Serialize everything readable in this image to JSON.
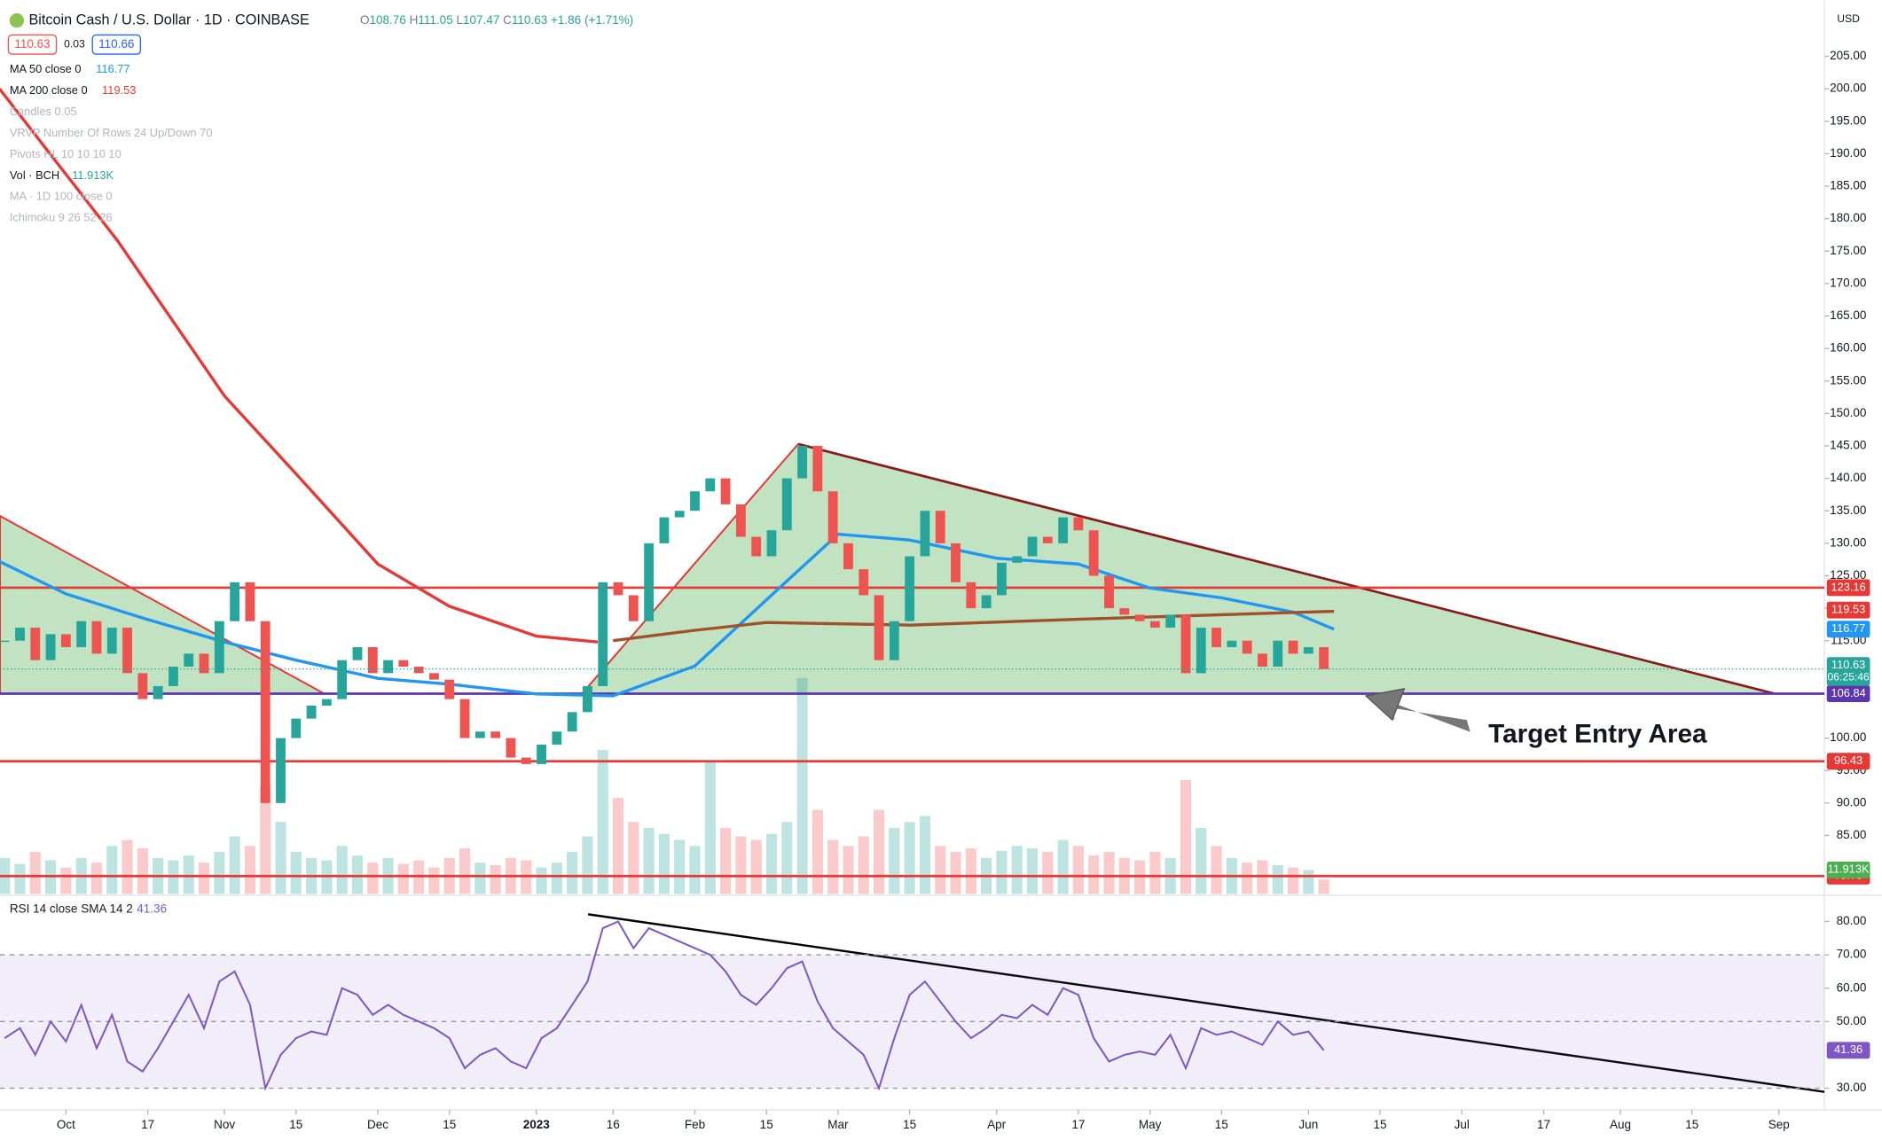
{
  "header": {
    "symbol": "Bitcoin Cash / U.S. Dollar · 1D · COINBASE",
    "ohlc": [
      [
        "O",
        "108.76"
      ],
      [
        "H",
        "111.05"
      ],
      [
        "L",
        "107.47"
      ],
      [
        "C",
        "110.63"
      ]
    ],
    "change": "+1.86 (+1.71%)",
    "bid": "110.63",
    "spread": "0.03",
    "ask": "110.66",
    "currency": "USD",
    "countdown": "06:25:46"
  },
  "indicators": [
    {
      "name": "MA 50 close 0",
      "value": 116.77,
      "color": "#2196f3"
    },
    {
      "name": "MA 200 close 0",
      "value": 119.53,
      "color": "#e53935"
    },
    {
      "name": "Candles 0.05"
    },
    {
      "name": "VRVP Number Of Rows 24 Up/Down 70"
    },
    {
      "name": "Pivots HL 10 10 10 10"
    },
    {
      "name": "Vol · BCH",
      "value": "11.913K",
      "color": "#26a69a"
    },
    {
      "name": "MA · 1D 100 close 0"
    },
    {
      "name": "Ichimoku 9 26 52 26"
    }
  ],
  "annotation": "Target Entry Area",
  "rsi_title": "RSI 14 close SMA 14 2",
  "rsi_value": 41.36,
  "chart_data": {
    "type": "candlestick",
    "xlim": [
      -12.9,
      343.9
    ],
    "ylim": [
      76.0,
      213.1
    ],
    "xticks": [
      {
        "value": 0,
        "label": "Oct"
      },
      {
        "value": 16,
        "label": "17"
      },
      {
        "value": 31,
        "label": "Nov"
      },
      {
        "value": 45,
        "label": "15"
      },
      {
        "value": 61,
        "label": "Dec"
      },
      {
        "value": 75,
        "label": "15"
      },
      {
        "value": 92,
        "label": "2023"
      },
      {
        "value": 107,
        "label": "16"
      },
      {
        "value": 123,
        "label": "Feb"
      },
      {
        "value": 137,
        "label": "15"
      },
      {
        "value": 151,
        "label": "Mar"
      },
      {
        "value": 165,
        "label": "15"
      },
      {
        "value": 182,
        "label": "Apr"
      },
      {
        "value": 198,
        "label": "17"
      },
      {
        "value": 212,
        "label": "May"
      },
      {
        "value": 226,
        "label": "15"
      },
      {
        "value": 243,
        "label": "Jun"
      },
      {
        "value": 257,
        "label": "15"
      },
      {
        "value": 273,
        "label": "Jul"
      },
      {
        "value": 289,
        "label": "17"
      },
      {
        "value": 304,
        "label": "Aug"
      },
      {
        "value": 318,
        "label": "15"
      },
      {
        "value": 335,
        "label": "Sep"
      }
    ],
    "yticks": [
      {
        "value": 205,
        "label": "205.00"
      },
      {
        "value": 200,
        "label": "200.00"
      },
      {
        "value": 195,
        "label": "195.00"
      },
      {
        "value": 190,
        "label": "190.00"
      },
      {
        "value": 185,
        "label": "185.00"
      },
      {
        "value": 180,
        "label": "180.00"
      },
      {
        "value": 175,
        "label": "175.00"
      },
      {
        "value": 170,
        "label": "170.00"
      },
      {
        "value": 165,
        "label": "165.00"
      },
      {
        "value": 160,
        "label": "160.00"
      },
      {
        "value": 155,
        "label": "155.00"
      },
      {
        "value": 150,
        "label": "150.00"
      },
      {
        "value": 145,
        "label": "145.00"
      },
      {
        "value": 140,
        "label": "140.00"
      },
      {
        "value": 135,
        "label": "135.00"
      },
      {
        "value": 130,
        "label": "130.00"
      },
      {
        "value": 125,
        "label": "125.00"
      },
      {
        "value": 120,
        "label": "120.00"
      },
      {
        "value": 115,
        "label": "115.00"
      },
      {
        "value": 100,
        "label": "100.00"
      },
      {
        "value": 95,
        "label": "95.00"
      },
      {
        "value": 90,
        "label": "90.00"
      },
      {
        "value": 85,
        "label": "85.00"
      }
    ],
    "x": [
      -12,
      -9,
      -6,
      -3,
      0,
      3,
      6,
      9,
      12,
      15,
      18,
      21,
      24,
      27,
      30,
      33,
      36,
      39,
      42,
      45,
      48,
      51,
      54,
      57,
      60,
      63,
      66,
      69,
      72,
      75,
      78,
      81,
      84,
      87,
      90,
      93,
      96,
      99,
      102,
      105,
      108,
      111,
      114,
      117,
      120,
      123,
      126,
      129,
      132,
      135,
      138,
      141,
      144,
      147,
      150,
      153,
      156,
      159,
      162,
      165,
      168,
      171,
      174,
      177,
      180,
      183,
      186,
      189,
      192,
      195,
      198,
      201,
      204,
      207,
      210,
      213,
      216,
      219,
      222,
      225,
      228,
      231,
      234,
      237,
      240,
      243,
      246
    ],
    "close": [
      115,
      117,
      112,
      116,
      114,
      118,
      113,
      117,
      110,
      106,
      108,
      111,
      113,
      110,
      118,
      124,
      118,
      90,
      100,
      103,
      105,
      106,
      112,
      114,
      110,
      112,
      111,
      110,
      109,
      106,
      100,
      101,
      100,
      97,
      96,
      99,
      101,
      104,
      108,
      124,
      122,
      118,
      130,
      134,
      135,
      138,
      140,
      136,
      131,
      128,
      132,
      140,
      145,
      138,
      130,
      126,
      122,
      112,
      118,
      128,
      135,
      130,
      124,
      120,
      122,
      127,
      128,
      131,
      130,
      134,
      132,
      125,
      120,
      119,
      118,
      117,
      119,
      110,
      117,
      114,
      115,
      113,
      111,
      115,
      113,
      114,
      110.63
    ],
    "volume": [
      30,
      25,
      35,
      28,
      22,
      30,
      26,
      40,
      45,
      38,
      30,
      28,
      32,
      26,
      35,
      48,
      40,
      90,
      60,
      35,
      30,
      28,
      40,
      32,
      26,
      30,
      25,
      28,
      22,
      30,
      38,
      26,
      24,
      30,
      28,
      22,
      26,
      35,
      48,
      120,
      80,
      60,
      55,
      50,
      45,
      40,
      110,
      55,
      48,
      45,
      50,
      60,
      180,
      70,
      45,
      40,
      48,
      70,
      55,
      60,
      65,
      40,
      35,
      38,
      30,
      36,
      40,
      38,
      35,
      45,
      40,
      32,
      35,
      30,
      28,
      35,
      30,
      95,
      55,
      40,
      30,
      26,
      28,
      24,
      22,
      20,
      12
    ],
    "ma": [
      {
        "color": "#2196f3",
        "x": [
          -13,
          0,
          15,
          31,
          45,
          61,
          75,
          92,
          107,
          123,
          137,
          151,
          165,
          182,
          198,
          212,
          226,
          240,
          248
        ],
        "values": [
          127.2,
          122.2,
          118.5,
          114.8,
          112,
          109.2,
          108.3,
          106.8,
          106.5,
          111.1,
          121.3,
          131.4,
          130.5,
          127.7,
          126.8,
          123.1,
          121.6,
          119.4,
          116.77
        ]
      },
      {
        "color": "#e53935",
        "x": [
          -13,
          10,
          31,
          45,
          61,
          75,
          92,
          104
        ],
        "values": [
          200,
          176.7,
          152.7,
          140.7,
          126.8,
          120.3,
          115.7,
          114.8
        ]
      },
      {
        "color": "#a0522d",
        "x": [
          107,
          123,
          137,
          165,
          198,
          226,
          248
        ],
        "values": [
          115,
          116.6,
          117.8,
          117.4,
          118.3,
          119,
          119.53
        ]
      }
    ],
    "levels": [
      {
        "value": 123.16,
        "color": "#e53935"
      },
      {
        "value": 106.84,
        "color": "#5e35b1"
      },
      {
        "value": 96.43,
        "color": "#e53935"
      },
      {
        "value": 78.75,
        "color": "#e53935"
      }
    ],
    "rsi": [
      45,
      48,
      40,
      50,
      44,
      55,
      42,
      52,
      38,
      35,
      42,
      50,
      58,
      48,
      62,
      65,
      55,
      30,
      40,
      45,
      47,
      46,
      60,
      58,
      52,
      55,
      52,
      50,
      48,
      45,
      36,
      40,
      42,
      38,
      36,
      45,
      48,
      55,
      62,
      78,
      80,
      72,
      78,
      76,
      74,
      72,
      70,
      65,
      58,
      55,
      60,
      66,
      68,
      56,
      48,
      44,
      40,
      30,
      45,
      58,
      62,
      56,
      50,
      45,
      48,
      52,
      51,
      55,
      52,
      60,
      58,
      45,
      38,
      40,
      41,
      40,
      46,
      36,
      48,
      46,
      47,
      45,
      43,
      50,
      46,
      47,
      41.36
    ],
    "rsi_ylim": [
      23.5,
      87.2
    ],
    "rsi_yticks": [
      {
        "value": 80,
        "label": "80.00"
      },
      {
        "value": 70,
        "label": "70.00"
      },
      {
        "value": 60,
        "label": "60.00"
      },
      {
        "value": 50,
        "label": "50.00"
      },
      {
        "value": 30,
        "label": "30.00"
      }
    ],
    "rsi_levels": [
      70,
      50,
      30
    ],
    "up_color": "#26a69a",
    "down_color": "#ef5350",
    "rsi_color": "#7e57c2"
  }
}
